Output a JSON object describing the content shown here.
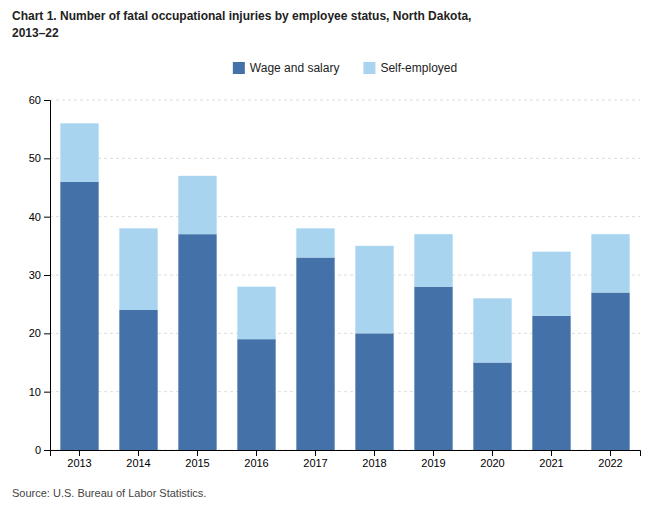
{
  "chart_data": {
    "type": "bar",
    "title": "Chart 1. Number of fatal occupational injuries by employee status, North Dakota,",
    "subtitle": "2013–22",
    "categories": [
      "2013",
      "2014",
      "2015",
      "2016",
      "2017",
      "2018",
      "2019",
      "2020",
      "2021",
      "2022"
    ],
    "series": [
      {
        "name": "Wage and salary",
        "color": "#4472a8",
        "values": [
          46,
          24,
          37,
          19,
          33,
          20,
          28,
          15,
          23,
          27
        ]
      },
      {
        "name": "Self-employed",
        "color": "#a8d4f0",
        "values": [
          10,
          14,
          10,
          9,
          5,
          15,
          9,
          11,
          11,
          10
        ]
      }
    ],
    "stacked": true,
    "ylim": [
      0,
      60
    ],
    "yticks": [
      0,
      10,
      20,
      30,
      40,
      50,
      60
    ],
    "grid": true,
    "legend": "top",
    "annotations": [
      "Source: U.S. Bureau of Labor Statistics."
    ]
  }
}
